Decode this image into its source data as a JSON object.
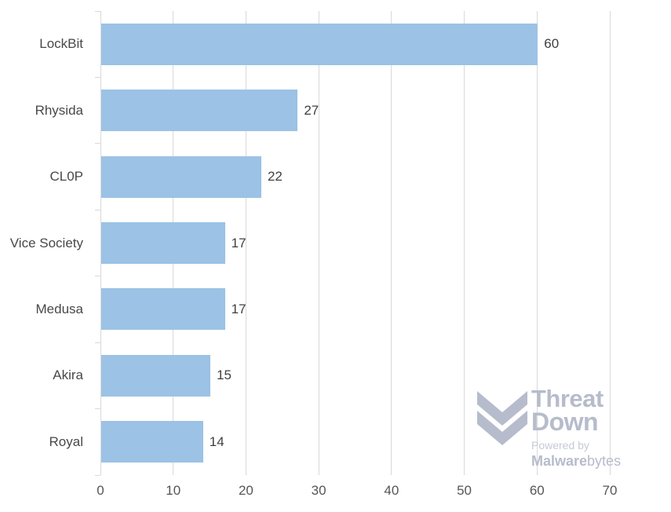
{
  "chart_data": {
    "type": "bar",
    "orientation": "horizontal",
    "title": "",
    "xlabel": "",
    "ylabel": "",
    "categories": [
      "LockBit",
      "Rhysida",
      "CL0P",
      "Vice Society",
      "Medusa",
      "Akira",
      "Royal"
    ],
    "values": [
      60,
      27,
      22,
      17,
      17,
      15,
      14
    ],
    "data_labels": [
      60,
      27,
      22,
      17,
      17,
      15,
      14
    ],
    "xlim": [
      0,
      70
    ],
    "xticks": [
      0,
      10,
      20,
      30,
      40,
      50,
      60,
      70
    ],
    "grid": "vertical-gridlines-on",
    "legend": "none",
    "bar_color": "#9cc2e5",
    "gridline_color": "#d9d9d9",
    "category_label_color": "#484848",
    "value_label_color": "#3f3f3f",
    "axis_label_color": "#555555"
  },
  "watermark": {
    "brand_top": "Threat",
    "brand_bottom": "Down",
    "powered_by": "Powered by",
    "mb_bold": "Malware",
    "mb_light": "bytes",
    "color": "#b6bccb",
    "light_color": "#c5cad6"
  }
}
